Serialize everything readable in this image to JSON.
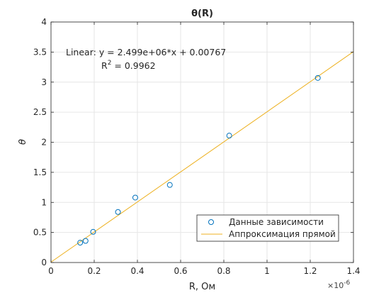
{
  "chart_data": {
    "type": "scatter",
    "title": "θ(R)",
    "xlabel": "R, Ом",
    "ylabel": "θ",
    "x_multiplier_label": "×10",
    "x_multiplier_exponent": "-6",
    "x_multiplier": 1e-06,
    "xlim": [
      0,
      1.4
    ],
    "ylim": [
      0,
      4
    ],
    "xticks": [
      0,
      0.2,
      0.4,
      0.6,
      0.8,
      1,
      1.2,
      1.4
    ],
    "xtick_labels": [
      "0",
      "0.2",
      "0.4",
      "0.6",
      "0.8",
      "1",
      "1.2",
      "1.4"
    ],
    "yticks": [
      0,
      0.5,
      1,
      1.5,
      2,
      2.5,
      3,
      3.5,
      4
    ],
    "ytick_labels": [
      "0",
      "0.5",
      "1",
      "1.5",
      "2",
      "2.5",
      "3",
      "3.5",
      "4"
    ],
    "grid": true,
    "legend_position": "bottom-right",
    "series": [
      {
        "name": "Данные зависимости",
        "kind": "marker",
        "marker": "circle",
        "color": "#0072bd",
        "x": [
          0.135,
          0.16,
          0.195,
          0.31,
          0.39,
          0.55,
          0.825,
          1.235
        ],
        "y": [
          0.33,
          0.36,
          0.51,
          0.84,
          1.08,
          1.29,
          2.11,
          3.07
        ]
      },
      {
        "name": "Аппроксимация прямой",
        "kind": "line",
        "color": "#edb120",
        "slope": 2.499,
        "intercept": 0.00767,
        "x": [
          0,
          1.4
        ]
      }
    ],
    "annotations": {
      "equation": "Linear:  y = 2.499e+06*x + 0.00767",
      "r2_label": "R",
      "r2_exp": "2",
      "r2_value": " = 0.9962"
    }
  }
}
